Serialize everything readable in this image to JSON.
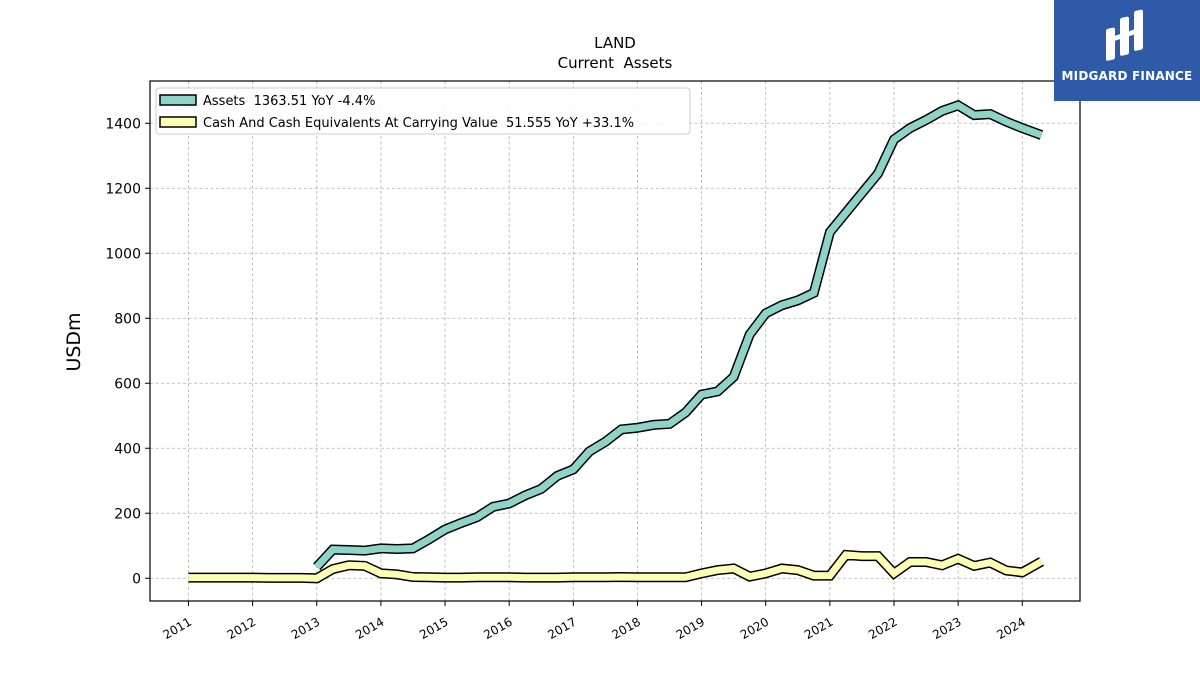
{
  "chart_data": {
    "type": "line",
    "title": "LAND",
    "subtitle": "Current  Assets",
    "ylabel": "USDm",
    "xlabel": "",
    "xlim": [
      2010.4,
      2024.9
    ],
    "ylim": [
      -70,
      1530
    ],
    "yticks": [
      0,
      200,
      400,
      600,
      800,
      1000,
      1200,
      1400
    ],
    "xticks": [
      "2011",
      "2012",
      "2013",
      "2014",
      "2015",
      "2016",
      "2017",
      "2018",
      "2019",
      "2020",
      "2021",
      "2022",
      "2023",
      "2024"
    ],
    "grid": true,
    "legend_position": "top-left",
    "series": [
      {
        "name": "Assets",
        "legend_label": "Assets  1363.51 YoY -4.4%",
        "color": "#8dd3c7",
        "x": [
          2013.0,
          2013.25,
          2013.5,
          2013.75,
          2014.0,
          2014.25,
          2014.5,
          2014.75,
          2015.0,
          2015.25,
          2015.5,
          2015.75,
          2016.0,
          2016.25,
          2016.5,
          2016.75,
          2017.0,
          2017.25,
          2017.5,
          2017.75,
          2018.0,
          2018.25,
          2018.5,
          2018.75,
          2019.0,
          2019.25,
          2019.5,
          2019.75,
          2020.0,
          2020.25,
          2020.5,
          2020.75,
          2021.0,
          2021.25,
          2021.5,
          2021.75,
          2022.0,
          2022.25,
          2022.5,
          2022.75,
          2023.0,
          2023.25,
          2023.5,
          2023.75,
          2024.0,
          2024.3
        ],
        "values": [
          35,
          88,
          87,
          85,
          92,
          90,
          92,
          120,
          150,
          170,
          188,
          220,
          230,
          255,
          275,
          315,
          335,
          390,
          420,
          458,
          463,
          472,
          475,
          510,
          565,
          575,
          620,
          750,
          815,
          840,
          855,
          878,
          1065,
          1125,
          1185,
          1245,
          1350,
          1385,
          1410,
          1438,
          1455,
          1425,
          1428,
          1405,
          1385,
          1363.51
        ]
      },
      {
        "name": "Cash And Cash Equivalents At Carrying Value",
        "legend_label": "Cash And Cash Equivalents At Carrying Value  51.555 YoY +33.1%",
        "color": "#ffffb3",
        "x": [
          2011.0,
          2011.25,
          2011.5,
          2011.75,
          2012.0,
          2012.25,
          2012.5,
          2012.75,
          2013.0,
          2013.25,
          2013.5,
          2013.75,
          2014.0,
          2014.25,
          2014.5,
          2014.75,
          2015.0,
          2015.25,
          2015.5,
          2015.75,
          2016.0,
          2016.25,
          2016.5,
          2016.75,
          2017.0,
          2017.25,
          2017.5,
          2017.75,
          2018.0,
          2018.25,
          2018.5,
          2018.75,
          2019.0,
          2019.25,
          2019.5,
          2019.75,
          2020.0,
          2020.25,
          2020.5,
          2020.75,
          2021.0,
          2021.25,
          2021.5,
          2021.75,
          2022.0,
          2022.25,
          2022.5,
          2022.75,
          2023.0,
          2023.25,
          2023.5,
          2023.75,
          2024.0,
          2024.3
        ],
        "values": [
          2,
          2,
          2,
          2,
          2,
          1,
          1,
          1,
          0,
          28,
          40,
          38,
          15,
          12,
          4,
          3,
          2,
          2,
          3,
          3,
          3,
          2,
          2,
          2,
          3,
          3,
          3,
          4,
          3,
          3,
          3,
          3,
          15,
          25,
          30,
          5,
          15,
          30,
          25,
          8,
          8,
          72,
          68,
          68,
          15,
          50,
          50,
          40,
          60,
          38,
          48,
          24,
          18,
          51.555
        ]
      }
    ]
  },
  "logo": {
    "text": "MIDGARD FINANCE",
    "bg_color": "#2f5aa8",
    "icon": "midgard-logo-icon"
  }
}
